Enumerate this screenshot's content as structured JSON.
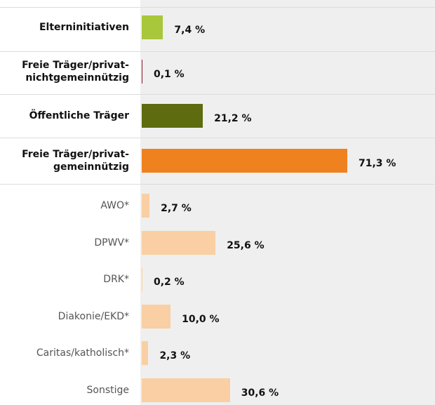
{
  "chart_data": {
    "type": "bar",
    "orientation": "horizontal",
    "categories": [
      "Elterninitiativen",
      "Freie Träger/privat-\nnichtgemeinnützig",
      "Öffentliche Träger",
      "Freie Träger/privat-\ngemeinnützig",
      "AWO*",
      "DPWV*",
      "DRK*",
      "Diakonie/EKD*",
      "Caritas/katholisch*",
      "Sonstige"
    ],
    "values": [
      7.4,
      0.1,
      21.2,
      71.3,
      2.7,
      25.6,
      0.2,
      10.0,
      2.3,
      30.6
    ],
    "value_labels": [
      "7,4 %",
      "0,1 %",
      "21,2 %",
      "71,3 %",
      "2,7 %",
      "25,6 %",
      "0,2 %",
      "10,0 %",
      "2,3 %",
      "30,6 %"
    ],
    "colors": [
      "#a8c73a",
      "#8b1a2e",
      "#5e6b0f",
      "#ef821f",
      "#f9cfa3",
      "#f9cfa3",
      "#f9cfa3",
      "#f9cfa3",
      "#f9cfa3",
      "#f9cfa3"
    ],
    "label_weights": [
      "bold",
      "bold",
      "bold",
      "bold",
      "normal",
      "normal",
      "normal",
      "normal",
      "normal",
      "normal"
    ]
  }
}
